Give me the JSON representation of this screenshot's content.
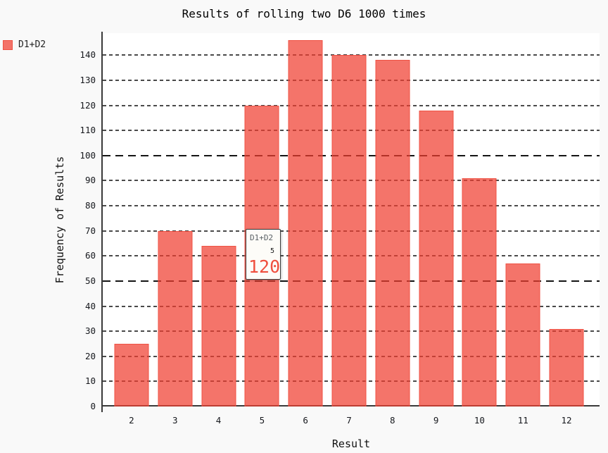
{
  "title": "Results of rolling two D6 1000 times",
  "legend": {
    "series_label": "D1+D2",
    "swatch_color": "#f4756a"
  },
  "axes": {
    "x_title": "Result",
    "y_title": "Frequency of Results"
  },
  "tooltip": {
    "serie": "D1+D2",
    "x_label": "5",
    "value": "120"
  },
  "colors": {
    "bar_fill": "#f4756a",
    "bar_stroke": "#ef5a4e",
    "tooltip_value": "#ef4f3e",
    "background": "#f9f9f9",
    "plot_background": "#ffffff"
  },
  "chart_data": {
    "type": "bar",
    "title": "Results of rolling two D6 1000 times",
    "xlabel": "Result",
    "ylabel": "Frequency of Results",
    "categories": [
      "2",
      "3",
      "4",
      "5",
      "6",
      "7",
      "8",
      "9",
      "10",
      "11",
      "12"
    ],
    "series": [
      {
        "name": "D1+D2",
        "values": [
          25,
          70,
          64,
          120,
          146,
          140,
          138,
          118,
          91,
          57,
          31
        ]
      }
    ],
    "total_rolls": 1000,
    "ylim": [
      0,
      148.8
    ],
    "yticks": [
      0,
      10,
      20,
      30,
      40,
      50,
      60,
      70,
      80,
      90,
      100,
      110,
      120,
      130,
      140
    ],
    "major_ytick_interval": 50,
    "grid": "horizontal-dashed",
    "legend_position": "top-left",
    "tooltip_shown_for_category": "5"
  }
}
